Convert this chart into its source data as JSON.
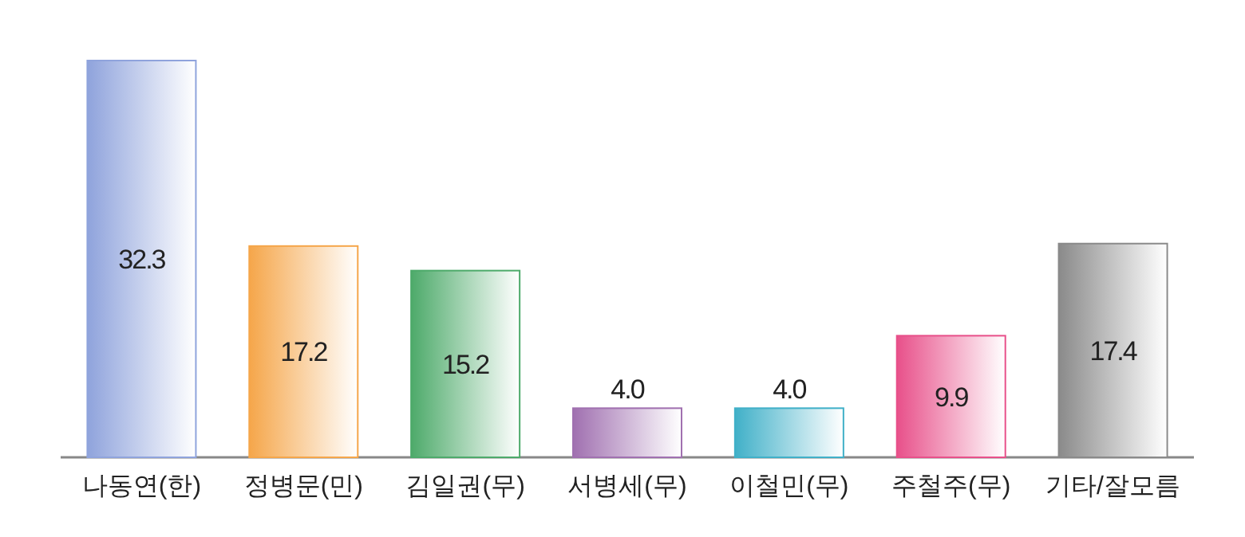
{
  "chart_data": {
    "type": "bar",
    "categories": [
      "나동연(한)",
      "정병문(민)",
      "김일권(무)",
      "서병세(무)",
      "이철민(무)",
      "주철주(무)",
      "기타/잘모름"
    ],
    "values": [
      32.3,
      17.2,
      15.2,
      4.0,
      4.0,
      9.9,
      17.4
    ],
    "colors": [
      "#8fa3dc",
      "#f5a64a",
      "#4daa6a",
      "#a070b0",
      "#40b0c8",
      "#e8508a",
      "#8a8a8a"
    ],
    "value_labels": [
      "32.3",
      "17.2",
      "15.2",
      "4.0",
      "4.0",
      "9.9",
      "17.4"
    ]
  }
}
